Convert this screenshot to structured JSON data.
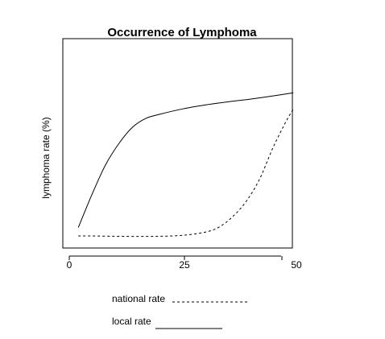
{
  "chart_data": {
    "type": "line",
    "title": "Occurrence of Lymphoma",
    "xlabel": "",
    "ylabel": "lymphoma rate (%)",
    "xlim": [
      0,
      50
    ],
    "x_ticks": [
      "0",
      "25",
      "50"
    ],
    "y_ticks": [],
    "grid": false,
    "legend_position": "below-plot",
    "series": [
      {
        "name": "national rate",
        "line_style": "dashed",
        "color": "#000000",
        "x": [
          2,
          5,
          10,
          15,
          20,
          25,
          30,
          33,
          36,
          39,
          42,
          45,
          48,
          49.5
        ],
        "y": [
          3.7,
          3.7,
          3.5,
          3.4,
          3.5,
          4.1,
          6.2,
          9.4,
          16.2,
          26.2,
          41,
          62,
          80,
          87.4
        ]
      },
      {
        "name": "local rate",
        "line_style": "solid",
        "color": "#000000",
        "x": [
          2,
          5,
          8,
          11,
          14,
          17,
          20,
          25,
          30,
          35,
          40,
          45,
          49.5
        ],
        "y": [
          9.3,
          31,
          50.6,
          64.9,
          75.6,
          81.5,
          84.1,
          87.6,
          90.2,
          92.3,
          94.1,
          96.2,
          98.3
        ]
      }
    ]
  }
}
